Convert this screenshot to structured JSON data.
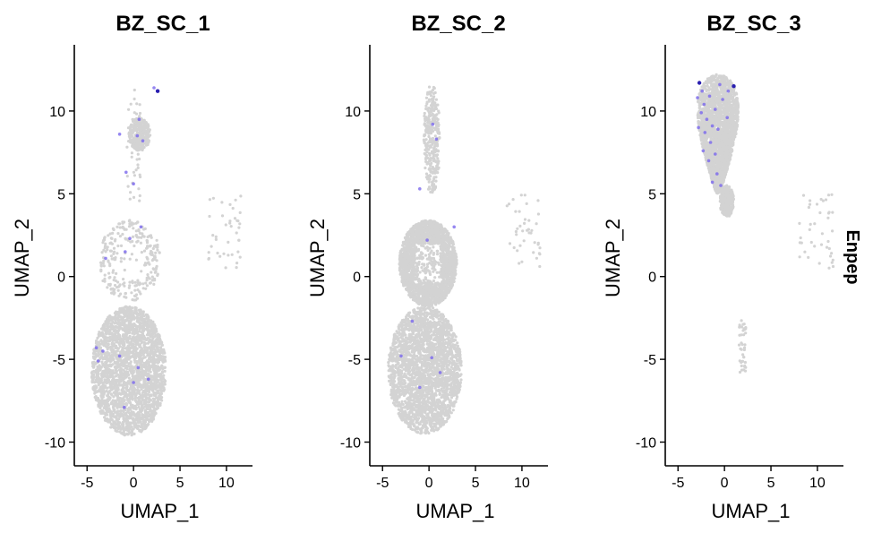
{
  "figure": {
    "feature_label": "Enpep"
  },
  "chart_data": [
    {
      "type": "scatter",
      "title": "BZ_SC_1",
      "xlabel": "UMAP_1",
      "ylabel": "UMAP_2",
      "xlim": [
        -5.6,
        12.8
      ],
      "ylim": [
        -11.0,
        14.0
      ],
      "xticks": [
        -5,
        0,
        5,
        10
      ],
      "yticks": [
        -10,
        -5,
        0,
        5,
        10
      ],
      "grid": false,
      "colors": {
        "background_cells": "#d3d3d3",
        "expressing_cells": "#7b68ee",
        "high_expression": "#2a1fb0"
      },
      "regions": [
        {
          "name": "top-cluster",
          "x_range": [
            -0.5,
            1.8
          ],
          "y_range": [
            7.6,
            9.6
          ],
          "density": "medium"
        },
        {
          "name": "top-stem",
          "x_range": [
            -0.7,
            0.8
          ],
          "y_range": [
            4.5,
            11.5
          ],
          "density": "sparse"
        },
        {
          "name": "arc",
          "x_range": [
            -3.8,
            3.0
          ],
          "y_range": [
            -1.5,
            3.4
          ],
          "density": "medium"
        },
        {
          "name": "main-blob",
          "x_range": [
            -4.5,
            3.5
          ],
          "y_range": [
            -9.6,
            -1.8
          ],
          "density": "dense"
        },
        {
          "name": "outliers-right",
          "x_range": [
            8.0,
            11.7
          ],
          "y_range": [
            0.5,
            5.0
          ],
          "density": "sparse"
        }
      ],
      "expressing_points": [
        {
          "x": 2.6,
          "y": 11.2,
          "level": "high"
        },
        {
          "x": 2.2,
          "y": 11.4,
          "level": "low"
        },
        {
          "x": 0.6,
          "y": 9.5,
          "level": "low"
        },
        {
          "x": 0.4,
          "y": 8.5,
          "level": "low"
        },
        {
          "x": 1.0,
          "y": 8.2,
          "level": "low"
        },
        {
          "x": -1.5,
          "y": 8.6,
          "level": "low"
        },
        {
          "x": -0.8,
          "y": 6.3,
          "level": "low"
        },
        {
          "x": 0.0,
          "y": 5.6,
          "level": "low"
        },
        {
          "x": -0.4,
          "y": 2.3,
          "level": "low"
        },
        {
          "x": 0.8,
          "y": 3.0,
          "level": "low"
        },
        {
          "x": -0.9,
          "y": 1.5,
          "level": "low"
        },
        {
          "x": -3.0,
          "y": 1.1,
          "level": "low"
        },
        {
          "x": -4.0,
          "y": -4.3,
          "level": "low"
        },
        {
          "x": -3.8,
          "y": -5.1,
          "level": "low"
        },
        {
          "x": -3.3,
          "y": -4.5,
          "level": "low"
        },
        {
          "x": -1.5,
          "y": -4.8,
          "level": "low"
        },
        {
          "x": 0.0,
          "y": -6.4,
          "level": "low"
        },
        {
          "x": 1.6,
          "y": -6.2,
          "level": "low"
        },
        {
          "x": 0.5,
          "y": -5.5,
          "level": "low"
        },
        {
          "x": -1.0,
          "y": -7.9,
          "level": "low"
        }
      ]
    },
    {
      "type": "scatter",
      "title": "BZ_SC_2",
      "xlabel": "UMAP_1",
      "ylabel": "UMAP_2",
      "xlim": [
        -5.6,
        12.8
      ],
      "ylim": [
        -11.0,
        14.0
      ],
      "xticks": [
        -5,
        0,
        5,
        10
      ],
      "yticks": [
        -10,
        -5,
        0,
        5,
        10
      ],
      "grid": false,
      "colors": {
        "background_cells": "#d3d3d3",
        "expressing_cells": "#7b68ee",
        "high_expression": "#2a1fb0"
      },
      "regions": [
        {
          "name": "top-stem",
          "x_range": [
            -0.6,
            1.2
          ],
          "y_range": [
            5.0,
            11.6
          ],
          "density": "medium"
        },
        {
          "name": "arc",
          "x_range": [
            -3.2,
            3.0
          ],
          "y_range": [
            -1.8,
            3.4
          ],
          "density": "dense"
        },
        {
          "name": "main-blob",
          "x_range": [
            -4.4,
            3.5
          ],
          "y_range": [
            -9.5,
            -1.8
          ],
          "density": "dense"
        },
        {
          "name": "outliers-right",
          "x_range": [
            8.0,
            12.0
          ],
          "y_range": [
            0.5,
            5.0
          ],
          "density": "sparse"
        }
      ],
      "expressing_points": [
        {
          "x": 0.4,
          "y": 9.2,
          "level": "low"
        },
        {
          "x": 0.8,
          "y": 8.3,
          "level": "low"
        },
        {
          "x": -1.0,
          "y": 5.3,
          "level": "low"
        },
        {
          "x": 2.7,
          "y": 3.0,
          "level": "low"
        },
        {
          "x": -0.2,
          "y": 2.2,
          "level": "low"
        },
        {
          "x": -1.8,
          "y": -2.7,
          "level": "low"
        },
        {
          "x": -3.0,
          "y": -4.8,
          "level": "low"
        },
        {
          "x": -1.0,
          "y": -6.7,
          "level": "low"
        },
        {
          "x": 0.3,
          "y": -4.9,
          "level": "low"
        },
        {
          "x": 1.2,
          "y": -5.8,
          "level": "low"
        }
      ]
    },
    {
      "type": "scatter",
      "title": "BZ_SC_3",
      "xlabel": "UMAP_1",
      "ylabel": "UMAP_2",
      "xlim": [
        -5.6,
        12.8
      ],
      "ylim": [
        -11.0,
        14.0
      ],
      "xticks": [
        -5,
        0,
        5,
        10
      ],
      "yticks": [
        -10,
        -5,
        0,
        5,
        10
      ],
      "grid": false,
      "colors": {
        "background_cells": "#d3d3d3",
        "expressing_cells": "#7b68ee",
        "high_expression": "#2a1fb0"
      },
      "regions": [
        {
          "name": "top-wedge",
          "x_range": [
            -3.2,
            3.0
          ],
          "y_range": [
            5.0,
            12.2
          ],
          "density": "dense"
        },
        {
          "name": "tail",
          "x_range": [
            -0.5,
            1.0
          ],
          "y_range": [
            3.6,
            5.5
          ],
          "density": "medium"
        },
        {
          "name": "outliers-right",
          "x_range": [
            8.0,
            11.7
          ],
          "y_range": [
            0.5,
            5.0
          ],
          "density": "sparse"
        },
        {
          "name": "outliers-bottom",
          "x_range": [
            1.5,
            2.3
          ],
          "y_range": [
            -5.8,
            -2.5
          ],
          "density": "sparse"
        }
      ],
      "expressing_points": [
        {
          "x": 1.0,
          "y": 11.5,
          "level": "high"
        },
        {
          "x": -2.7,
          "y": 11.7,
          "level": "high"
        },
        {
          "x": -2.4,
          "y": 11.2,
          "level": "low"
        },
        {
          "x": -2.9,
          "y": 10.8,
          "level": "low"
        },
        {
          "x": -2.2,
          "y": 10.4,
          "level": "low"
        },
        {
          "x": -1.6,
          "y": 10.9,
          "level": "low"
        },
        {
          "x": -1.0,
          "y": 10.1,
          "level": "low"
        },
        {
          "x": -2.5,
          "y": 9.9,
          "level": "low"
        },
        {
          "x": -1.9,
          "y": 9.5,
          "level": "low"
        },
        {
          "x": -1.3,
          "y": 9.1,
          "level": "low"
        },
        {
          "x": -2.1,
          "y": 8.7,
          "level": "low"
        },
        {
          "x": -0.7,
          "y": 8.9,
          "level": "low"
        },
        {
          "x": -1.5,
          "y": 8.1,
          "level": "low"
        },
        {
          "x": -2.3,
          "y": 7.6,
          "level": "low"
        },
        {
          "x": -1.0,
          "y": 7.4,
          "level": "low"
        },
        {
          "x": -1.7,
          "y": 7.0,
          "level": "low"
        },
        {
          "x": -0.8,
          "y": 6.2,
          "level": "low"
        },
        {
          "x": -1.3,
          "y": 5.7,
          "level": "low"
        },
        {
          "x": -0.4,
          "y": 5.5,
          "level": "low"
        },
        {
          "x": -0.2,
          "y": 10.7,
          "level": "low"
        },
        {
          "x": 0.3,
          "y": 9.6,
          "level": "low"
        },
        {
          "x": 0.4,
          "y": 11.2,
          "level": "low"
        },
        {
          "x": -2.8,
          "y": 9.0,
          "level": "low"
        },
        {
          "x": -0.5,
          "y": 11.6,
          "level": "low"
        }
      ]
    }
  ]
}
